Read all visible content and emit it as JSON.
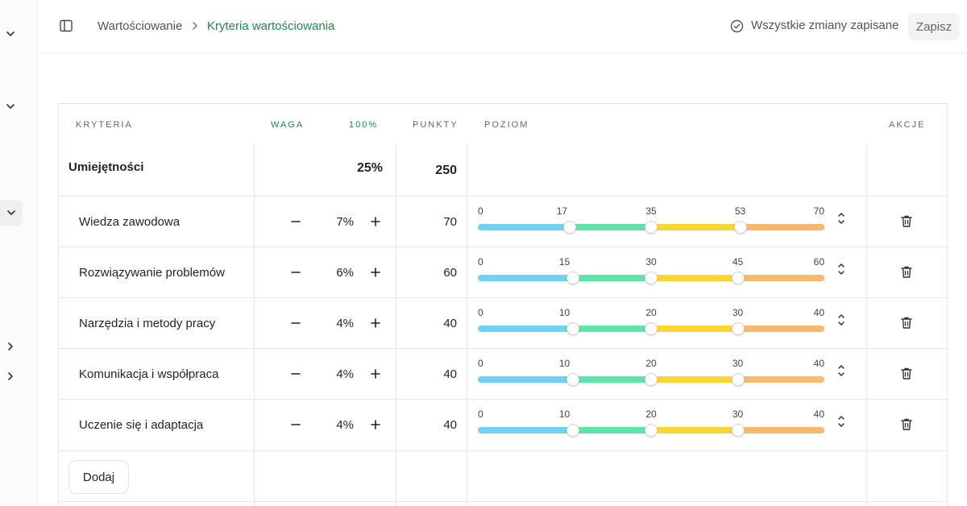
{
  "breadcrumb": {
    "parent": "Wartościowanie",
    "current": "Kryteria wartościowania"
  },
  "status": {
    "saved_text": "Wszystkie zmiany zapisane"
  },
  "toolbar": {
    "save_label": "Zapisz"
  },
  "table": {
    "headers": {
      "criteria": "KRYTERIA",
      "weight": "WAGA",
      "weight_total": "100%",
      "points": "PUNKTY",
      "level": "POZIOM",
      "actions": "AKCJE"
    },
    "group": {
      "name": "Umiejętności",
      "weight": "25%",
      "points": "250"
    },
    "rows": [
      {
        "name": "Wiedza zawodowa",
        "weight": "7%",
        "points": "70",
        "ticks": [
          "0",
          "17",
          "35",
          "53",
          "70"
        ],
        "max": 70
      },
      {
        "name": "Rozwiązywanie problemów",
        "weight": "6%",
        "points": "60",
        "ticks": [
          "0",
          "15",
          "30",
          "45",
          "60"
        ],
        "max": 60
      },
      {
        "name": "Narzędzia i metody pracy",
        "weight": "4%",
        "points": "40",
        "ticks": [
          "0",
          "10",
          "20",
          "30",
          "40"
        ],
        "max": 40
      },
      {
        "name": "Komunikacja i współpraca",
        "weight": "4%",
        "points": "40",
        "ticks": [
          "0",
          "10",
          "20",
          "30",
          "40"
        ],
        "max": 40
      },
      {
        "name": "Uczenie się i adaptacja",
        "weight": "4%",
        "points": "40",
        "ticks": [
          "0",
          "10",
          "20",
          "30",
          "40"
        ],
        "max": 40
      }
    ],
    "add_label": "Dodaj"
  },
  "level_colors": [
    "#6fd1f7",
    "#5ee3a8",
    "#fcd531",
    "#f9b86b"
  ]
}
